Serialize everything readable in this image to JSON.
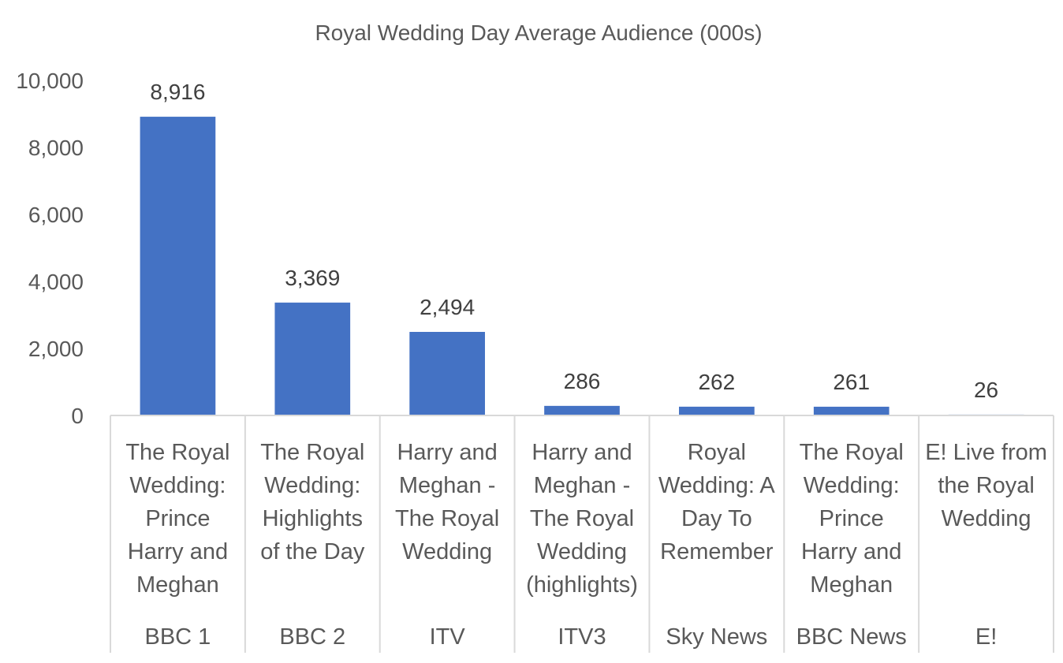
{
  "chart_data": {
    "type": "bar",
    "title": "Royal Wedding Day Average Audience (000s)",
    "xlabel": "",
    "ylabel": "",
    "ylim": [
      0,
      10000
    ],
    "yticks": [
      "0",
      "2,000",
      "4,000",
      "6,000",
      "8,000",
      "10,000"
    ],
    "grid": false,
    "legend": "none",
    "bar_color": "#4472C4",
    "categories": [
      {
        "label": "The Royal Wedding: Prince Harry and Meghan",
        "lines": [
          "The Royal",
          "Wedding:",
          "Prince",
          "Harry and",
          "Meghan"
        ],
        "channel": "BBC 1",
        "value": 8916,
        "value_label": "8,916"
      },
      {
        "label": "The Royal Wedding: Highlights of the Day",
        "lines": [
          "The Royal",
          "Wedding:",
          "Highlights",
          "of the Day"
        ],
        "channel": "BBC 2",
        "value": 3369,
        "value_label": "3,369"
      },
      {
        "label": "Harry and Meghan - The Royal Wedding",
        "lines": [
          "Harry and",
          "Meghan -",
          "The Royal",
          "Wedding"
        ],
        "channel": "ITV",
        "value": 2494,
        "value_label": "2,494"
      },
      {
        "label": "Harry and Meghan - The Royal Wedding (highlights)",
        "lines": [
          "Harry and",
          "Meghan -",
          "The Royal",
          "Wedding",
          "(highlights)"
        ],
        "channel": "ITV3",
        "value": 286,
        "value_label": "286"
      },
      {
        "label": "Royal Wedding: A Day To Remember",
        "lines": [
          "Royal",
          "Wedding: A",
          "Day To",
          "Remember"
        ],
        "channel": "Sky News",
        "value": 262,
        "value_label": "262"
      },
      {
        "label": "The Royal Wedding: Prince Harry and Meghan",
        "lines": [
          "The Royal",
          "Wedding:",
          "Prince",
          "Harry and",
          "Meghan"
        ],
        "channel": "BBC News",
        "value": 261,
        "value_label": "261"
      },
      {
        "label": "E! Live from the Royal Wedding",
        "lines": [
          "E! Live from",
          "the Royal",
          "Wedding"
        ],
        "channel": "E!",
        "value": 26,
        "value_label": "26"
      }
    ]
  }
}
